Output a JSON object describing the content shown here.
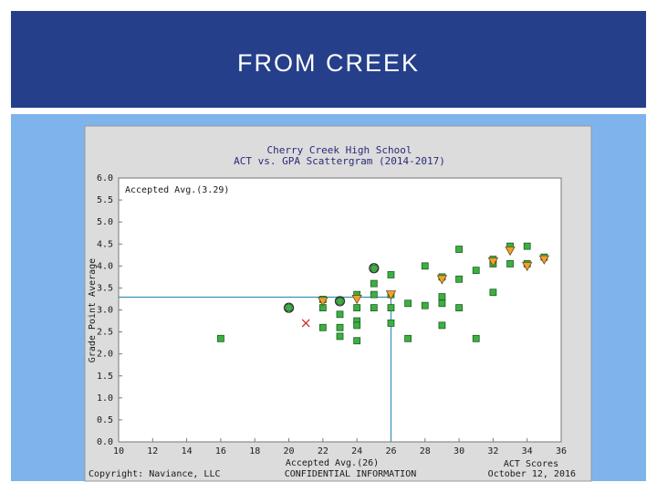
{
  "slide": {
    "title": "FROM CREEK"
  },
  "chart_data": {
    "type": "scatter",
    "title": "Cherry Creek High School",
    "subtitle": "ACT vs. GPA Scattergram (2014-2017)",
    "x_label": "ACT Scores",
    "y_label": "Grade Point Average",
    "annotations": {
      "y_avg": "Accepted Avg.(3.29)",
      "x_avg": "Accepted Avg.(26)",
      "copyright": "Copyright: Naviance, LLC",
      "confidential": "CONFIDENTIAL INFORMATION",
      "date": "October 12, 2016"
    },
    "ref_lines": {
      "x": 26,
      "y": 3.29,
      "color": "#3a8fb7"
    },
    "xlim": [
      10,
      36
    ],
    "xticks": [
      10,
      12,
      14,
      16,
      18,
      20,
      22,
      24,
      26,
      28,
      30,
      32,
      34,
      36
    ],
    "ylim": [
      0,
      6
    ],
    "yticks": [
      {
        "value": 0,
        "label": "0.0"
      },
      0.5,
      {
        "value": 1,
        "label": "1.0"
      },
      1.5,
      {
        "value": 2,
        "label": "2.0"
      },
      2.5,
      {
        "value": 3,
        "label": "3.0"
      },
      3.5,
      {
        "value": 4,
        "label": "4.0"
      },
      4.5,
      {
        "value": 5,
        "label": "5.0"
      },
      5.5,
      {
        "value": 6,
        "label": "6.0"
      }
    ],
    "grid": false,
    "series": [
      {
        "marker": "square",
        "color": "#3cb043",
        "x": [
          16,
          20,
          22,
          22,
          22,
          23,
          23,
          23,
          23,
          24,
          24,
          24,
          24,
          24,
          25,
          25,
          25,
          25,
          26,
          26,
          26,
          26,
          27,
          27,
          28,
          28,
          29,
          29,
          29,
          29,
          30,
          30,
          30,
          31,
          31,
          32,
          32,
          32,
          33,
          33,
          34,
          34,
          35
        ],
        "values": [
          2.35,
          3.05,
          3.24,
          3.05,
          2.6,
          3.2,
          2.9,
          2.6,
          2.4,
          3.35,
          3.05,
          2.75,
          2.65,
          2.3,
          3.95,
          3.6,
          3.35,
          3.05,
          3.8,
          3.35,
          3.05,
          2.7,
          3.15,
          2.35,
          4.0,
          3.1,
          3.75,
          3.3,
          3.15,
          2.65,
          4.38,
          3.7,
          3.05,
          3.9,
          2.35,
          4.15,
          4.05,
          3.4,
          4.45,
          4.05,
          4.45,
          4.05,
          4.2
        ]
      },
      {
        "marker": "triangle",
        "color": "#f0a030",
        "x": [
          22,
          24,
          26,
          29,
          32,
          33,
          34,
          35
        ],
        "values": [
          3.2,
          3.25,
          3.35,
          3.7,
          4.1,
          4.35,
          4.0,
          4.15
        ]
      },
      {
        "marker": "x",
        "color": "#d02020",
        "x": [
          21
        ],
        "values": [
          2.7
        ]
      },
      {
        "marker": "circle",
        "color": "#333333",
        "x": [
          20,
          23,
          25
        ],
        "values": [
          3.05,
          3.2,
          3.95
        ]
      }
    ]
  }
}
